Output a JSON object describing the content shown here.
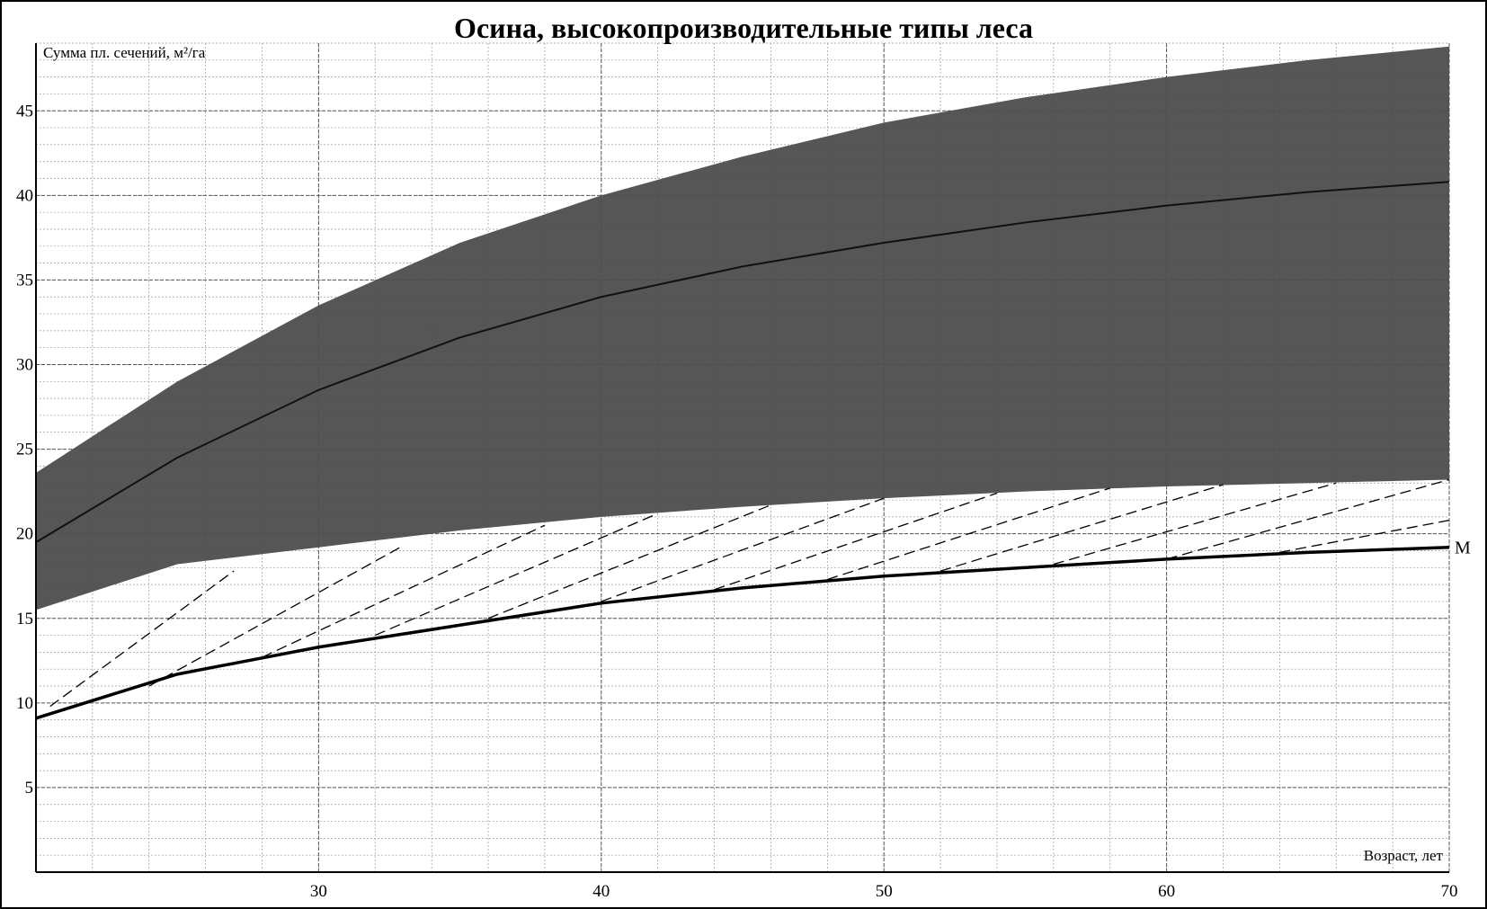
{
  "chart_data": {
    "type": "line",
    "title": "Осина, высокопроизводительные типы леса",
    "y_label": "Сумма пл. сечений, м²/га",
    "x_label": "Возраст, лет",
    "x": [
      20,
      25,
      30,
      35,
      40,
      45,
      50,
      55,
      60,
      65,
      70
    ],
    "band": {
      "color": "#4d4d4d",
      "upper": [
        23.6,
        29,
        33.5,
        37.2,
        40,
        42.3,
        44.3,
        45.8,
        47,
        48,
        48.8
      ],
      "lower": [
        15.5,
        18.2,
        19.2,
        20.2,
        21.0,
        21.6,
        22.1,
        22.5,
        22.8,
        23.0,
        23.2
      ]
    },
    "series": [
      {
        "name": "M",
        "color": "#000000",
        "values": [
          9.1,
          11.7,
          13.3,
          14.6,
          15.9,
          16.8,
          17.5,
          18.0,
          18.5,
          18.9,
          19.2
        ]
      },
      {
        "name": null,
        "color": "#111111",
        "values": [
          19.5,
          24.5,
          28.5,
          31.6,
          34,
          35.8,
          37.2,
          38.4,
          39.4,
          40.2,
          40.8
        ]
      }
    ],
    "guides": [
      {
        "x": [
          20.5,
          27
        ],
        "y": [
          9.8,
          17.8
        ]
      },
      {
        "x": [
          24,
          33
        ],
        "y": [
          11,
          19.3
        ]
      },
      {
        "x": [
          28,
          38
        ],
        "y": [
          12.7,
          20.5
        ]
      },
      {
        "x": [
          32,
          42
        ],
        "y": [
          14,
          21.2
        ]
      },
      {
        "x": [
          36,
          46
        ],
        "y": [
          15,
          21.7
        ]
      },
      {
        "x": [
          40,
          50
        ],
        "y": [
          16,
          22.1
        ]
      },
      {
        "x": [
          44,
          54
        ],
        "y": [
          16.7,
          22.4
        ]
      },
      {
        "x": [
          48,
          58
        ],
        "y": [
          17.3,
          22.7
        ]
      },
      {
        "x": [
          52,
          62
        ],
        "y": [
          17.8,
          22.9
        ]
      },
      {
        "x": [
          56,
          66
        ],
        "y": [
          18.2,
          23.0
        ]
      },
      {
        "x": [
          60,
          70
        ],
        "y": [
          18.5,
          23.2
        ]
      },
      {
        "x": [
          64,
          70
        ],
        "y": [
          18.9,
          20.8
        ]
      }
    ],
    "xlim": [
      20,
      70
    ],
    "ylim": [
      0,
      49
    ],
    "xticks": [
      30,
      40,
      50,
      60,
      70
    ],
    "yticks": [
      5,
      10,
      15,
      20,
      25,
      30,
      35,
      40,
      45
    ],
    "grid": true
  }
}
